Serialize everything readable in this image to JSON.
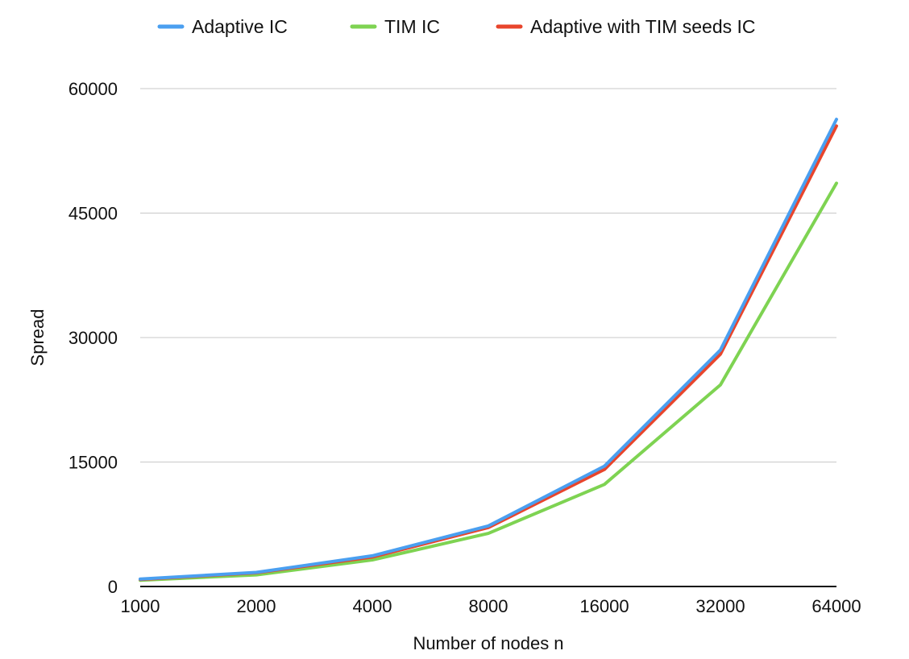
{
  "chart_data": {
    "type": "line",
    "title": "",
    "xlabel": "Number of nodes n",
    "ylabel": "Spread",
    "categories": [
      "1000",
      "2000",
      "4000",
      "8000",
      "16000",
      "32000",
      "64000"
    ],
    "yticks": [
      "0",
      "15000",
      "30000",
      "45000",
      "60000"
    ],
    "ylim": [
      0,
      60000
    ],
    "grid": true,
    "legend_position": "top",
    "series": [
      {
        "name": "Adaptive IC",
        "color": "#4a9ff0",
        "values": [
          900,
          1700,
          3700,
          7300,
          14500,
          28500,
          56300
        ]
      },
      {
        "name": "TIM IC",
        "color": "#7ed352",
        "values": [
          750,
          1400,
          3200,
          6400,
          12300,
          24300,
          48600
        ]
      },
      {
        "name": "Adaptive with TIM seeds IC",
        "color": "#e8452c",
        "values": [
          850,
          1650,
          3550,
          7100,
          14100,
          28000,
          55500
        ]
      }
    ]
  }
}
